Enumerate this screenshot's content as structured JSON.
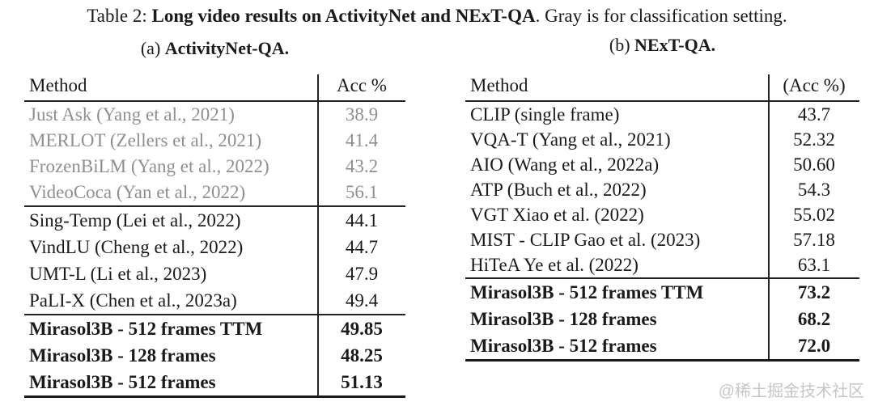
{
  "title": {
    "prefix": "Table 2: ",
    "bold": "Long video results on ActivityNet and NExT-QA",
    "suffix": ". Gray is for classification setting."
  },
  "watermark": "@稀土掘金技术社区",
  "colors": {
    "gray_text": "#8f8f8f",
    "text": "#1a1a1a",
    "rule": "#222222",
    "watermark": "#c6c6c6"
  },
  "tables": [
    {
      "caption_prefix": "(a) ",
      "caption_bold": "ActivityNet-QA",
      "caption_suffix": ".",
      "header": {
        "method": "Method",
        "acc": "Acc %"
      },
      "sections": [
        {
          "style": "gray",
          "rows": [
            {
              "method": "Just Ask (Yang et al., 2021)",
              "acc": "38.9"
            },
            {
              "method": "MERLOT (Zellers et al., 2021)",
              "acc": "41.4"
            },
            {
              "method": "FrozenBiLM (Yang et al., 2022)",
              "acc": "43.2"
            },
            {
              "method": "VideoCoca (Yan et al., 2022)",
              "acc": "56.1"
            }
          ]
        },
        {
          "style": "normal",
          "rows": [
            {
              "method": "Sing-Temp (Lei et al., 2022)",
              "acc": "44.1"
            },
            {
              "method": "VindLU (Cheng et al., 2022)",
              "acc": "44.7"
            },
            {
              "method": "UMT-L (Li et al., 2023)",
              "acc": "47.9"
            },
            {
              "method": "PaLI-X (Chen et al., 2023a)",
              "acc": "49.4"
            }
          ]
        },
        {
          "style": "bold",
          "rows": [
            {
              "method": "Mirasol3B - 512 frames TTM",
              "acc": "49.85"
            },
            {
              "method": "Mirasol3B - 128 frames",
              "acc": "48.25"
            },
            {
              "method": "Mirasol3B - 512 frames",
              "acc": "51.13"
            }
          ]
        }
      ]
    },
    {
      "caption_prefix": "(b) ",
      "caption_bold": "NExT-QA",
      "caption_suffix": ".",
      "header": {
        "method": "Method",
        "acc": "(Acc %)"
      },
      "sections": [
        {
          "style": "normal",
          "rows": [
            {
              "method": "CLIP (single frame)",
              "acc": "43.7"
            },
            {
              "method": "VQA-T (Yang et al., 2021)",
              "acc": "52.32"
            },
            {
              "method": "AIO (Wang et al., 2022a)",
              "acc": "50.60"
            },
            {
              "method": "ATP (Buch et al., 2022)",
              "acc": "54.3"
            },
            {
              "method": "VGT Xiao et al. (2022)",
              "acc": "55.02"
            },
            {
              "method": "MIST - CLIP Gao et al. (2023)",
              "acc": "57.18"
            },
            {
              "method": "HiTeA Ye et al. (2022)",
              "acc": "63.1"
            }
          ]
        },
        {
          "style": "bold",
          "rows": [
            {
              "method": "Mirasol3B - 512 frames TTM",
              "acc": "73.2"
            },
            {
              "method": "Mirasol3B - 128 frames",
              "acc": "68.2"
            },
            {
              "method": "Mirasol3B - 512 frames",
              "acc": "72.0"
            }
          ]
        }
      ]
    }
  ]
}
